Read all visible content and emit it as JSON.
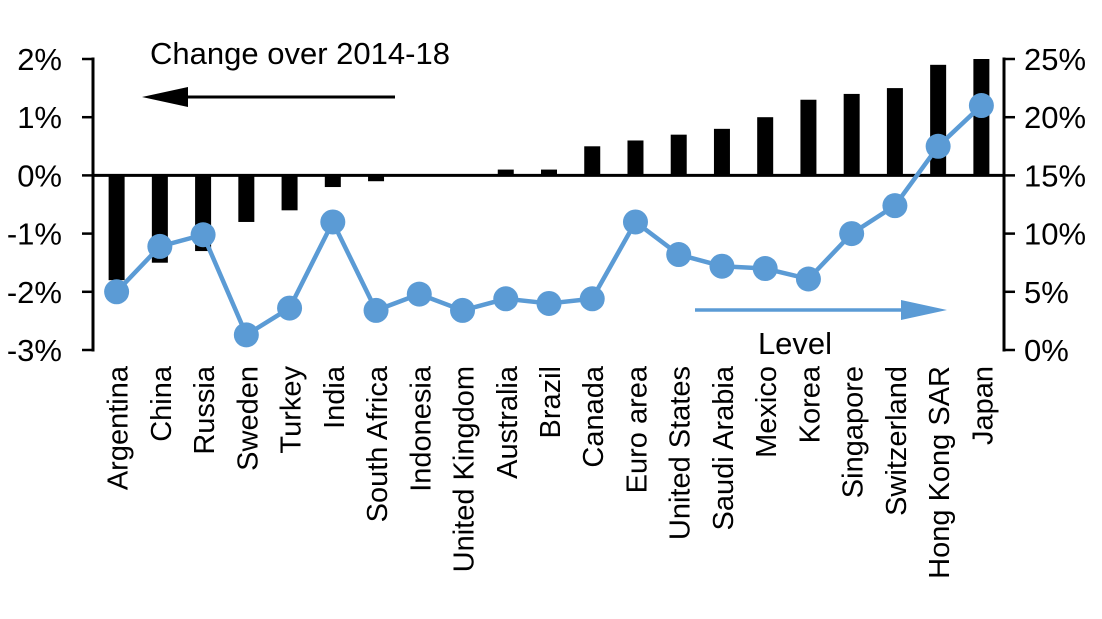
{
  "chart_data": {
    "type": "combo_bar_line",
    "title": "",
    "categories": [
      "Argentina",
      "China",
      "Russia",
      "Sweden",
      "Turkey",
      "India",
      "South Africa",
      "Indonesia",
      "United Kingdom",
      "Australia",
      "Brazil",
      "Canada",
      "Euro area",
      "United States",
      "Saudi Arabia",
      "Mexico",
      "Korea",
      "Singapore",
      "Switzerland",
      "Hong Kong SAR",
      "Japan"
    ],
    "series": [
      {
        "name": "Change over 2014-18",
        "type": "bar",
        "axis": "left",
        "color": "#000000",
        "values": [
          -1.8,
          -1.5,
          -1.3,
          -0.8,
          -0.6,
          -0.2,
          -0.1,
          0,
          0,
          0.1,
          0.1,
          0.5,
          0.6,
          0.7,
          0.8,
          1.0,
          1.3,
          1.4,
          1.5,
          1.9,
          2.0
        ]
      },
      {
        "name": "Level",
        "type": "line",
        "axis": "right",
        "color": "#5B9BD5",
        "values": [
          5.0,
          8.9,
          9.9,
          1.3,
          3.6,
          11.0,
          3.4,
          4.8,
          3.4,
          4.4,
          4.0,
          4.4,
          11.0,
          8.2,
          7.2,
          7.0,
          6.1,
          10.0,
          12.4,
          17.5,
          21.0
        ]
      }
    ],
    "left_axis": {
      "min": -3,
      "max": 2,
      "tick_step": 1,
      "tick_labels": [
        "2%",
        "1%",
        "0%",
        "-1%",
        "-2%",
        "-3%"
      ],
      "ticks": [
        2,
        1,
        0,
        -1,
        -2,
        -3
      ]
    },
    "right_axis": {
      "min": 0,
      "max": 25,
      "tick_step": 5,
      "tick_labels": [
        "25%",
        "20%",
        "15%",
        "10%",
        "5%",
        "0%"
      ],
      "ticks": [
        25,
        20,
        15,
        10,
        5,
        0
      ]
    },
    "annotations": [
      {
        "id": "change-annotation",
        "text": "Change over 2014-18",
        "arrow": "left",
        "color": "#000000"
      },
      {
        "id": "level-annotation",
        "text": "Level",
        "arrow": "right",
        "color": "#5B9BD5"
      }
    ],
    "grid": false,
    "legend": "none",
    "colors": {
      "bar": "#000000",
      "line": "#5B9BD5",
      "axis": "#000000",
      "background": "#ffffff"
    }
  }
}
